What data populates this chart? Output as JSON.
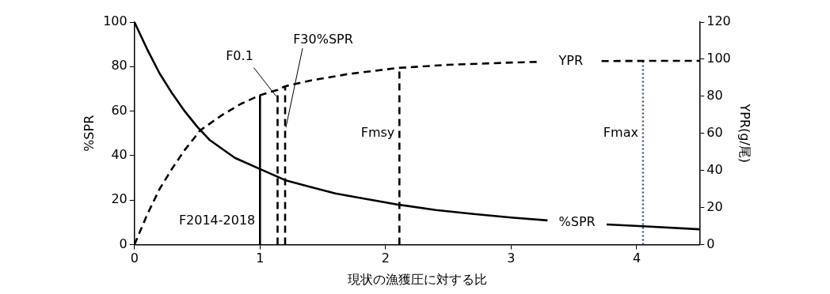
{
  "chart_data": {
    "type": "line",
    "xlabel": "現状の漁獲圧に対する比",
    "ylabel": "%SPR",
    "y2label": "YPR(g/尾)",
    "xlim": [
      0,
      4.5
    ],
    "xticks": [
      0,
      1,
      2,
      3,
      4
    ],
    "ylim": [
      0,
      100
    ],
    "yticks": [
      0,
      20,
      40,
      60,
      80,
      100
    ],
    "y2lim": [
      0,
      120
    ],
    "y2ticks": [
      0,
      20,
      40,
      60,
      80,
      100,
      120
    ],
    "grid": false,
    "legend": false,
    "marker": "none",
    "series": [
      {
        "name": "%SPR",
        "color": "#000000",
        "line_style": "solid",
        "x": [
          0,
          0.1,
          0.2,
          0.3,
          0.4,
          0.5,
          0.6,
          0.8,
          1,
          1.2,
          1.4,
          1.6,
          1.8,
          2.1,
          2.4,
          2.7,
          3,
          3.29,
          3.5,
          3.76,
          4.05,
          4.5
        ],
        "values": [
          100,
          88,
          77,
          68,
          60,
          53,
          47,
          39,
          34,
          29,
          26,
          23,
          21,
          18,
          15.6,
          13.8,
          12.2,
          10.9,
          null,
          9.1,
          8.3,
          6.9
        ]
      },
      {
        "name": "YPR",
        "axis": "y2",
        "color": "#000000",
        "line_style": "dashed",
        "x": [
          0,
          0.1,
          0.2,
          0.3,
          0.4,
          0.525,
          0.7,
          0.85,
          1,
          1.14,
          1.2,
          1.4,
          1.7,
          2.1,
          2.5,
          3,
          3.23,
          3.5,
          3.72,
          4.05,
          4.5
        ],
        "values": [
          0,
          16,
          30,
          41,
          51,
          61.7,
          70,
          76,
          80.6,
          83.5,
          85.4,
          88.5,
          92,
          95.3,
          97,
          98.2,
          98.6,
          null,
          99,
          99.1,
          99.1
        ]
      },
      {
        "name": "F2014-2018",
        "axis": "y2",
        "color": "#000000",
        "line_style": "solid",
        "x": [
          1,
          1
        ],
        "values": [
          0,
          80.6
        ]
      },
      {
        "name": "F0.1",
        "axis": "y2",
        "color": "#000000",
        "line_style": "dashed",
        "x": [
          1.14,
          1.14
        ],
        "values": [
          0,
          83.5
        ]
      },
      {
        "name": "F30%SPR",
        "axis": "y2",
        "color": "#000000",
        "line_style": "dashed",
        "x": [
          1.2,
          1.2
        ],
        "values": [
          0,
          85.4
        ]
      },
      {
        "name": "Fmsy",
        "axis": "y2",
        "color": "#000000",
        "line_style": "dashed",
        "x": [
          2.11,
          2.11
        ],
        "values": [
          0,
          95.3
        ]
      },
      {
        "name": "Fmax",
        "axis": "y2",
        "color": "#44548c",
        "line_style": "dotted",
        "x": [
          4.05,
          4.05
        ],
        "values": [
          0,
          99.1
        ]
      }
    ]
  }
}
